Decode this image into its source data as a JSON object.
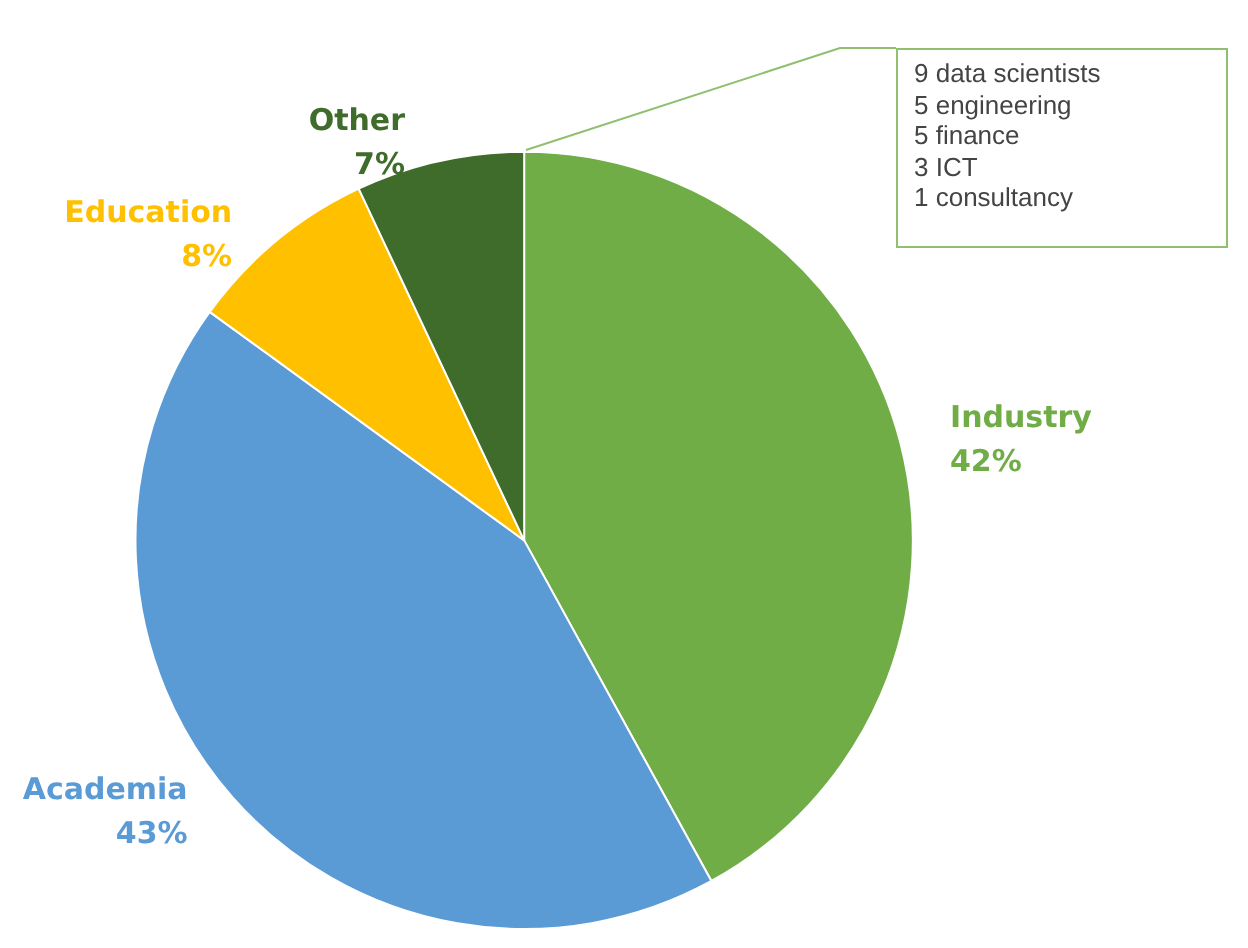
{
  "chart_data": {
    "type": "pie",
    "categories": [
      "Industry",
      "Academia",
      "Education",
      "Other"
    ],
    "values": [
      42,
      43,
      8,
      7
    ],
    "colors": [
      "#70ad47",
      "#5b9bd5",
      "#ffc000",
      "#3f6b2b"
    ],
    "value_labels": [
      "42%",
      "43%",
      "8%",
      "7%"
    ],
    "annotations": [
      "9 data scientists",
      "5 engineering",
      "5 finance",
      "3 ICT",
      "1 consultancy"
    ]
  }
}
